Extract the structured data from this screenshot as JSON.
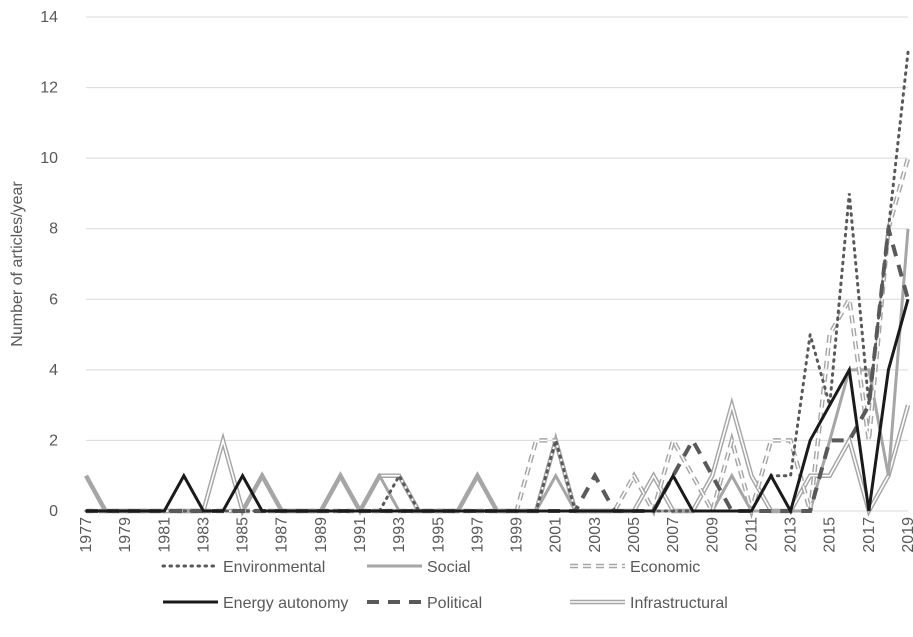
{
  "chart_data": {
    "type": "line",
    "title": "",
    "xlabel": "",
    "ylabel": "Number of articles/year",
    "ylim": [
      0,
      14
    ],
    "yticks": [
      0,
      2,
      4,
      6,
      8,
      10,
      12,
      14
    ],
    "grid": "horizontal",
    "legend_position": "bottom",
    "x": [
      1977,
      1978,
      1979,
      1980,
      1981,
      1982,
      1983,
      1984,
      1985,
      1986,
      1987,
      1988,
      1989,
      1990,
      1991,
      1992,
      1993,
      1994,
      1995,
      1996,
      1997,
      1998,
      1999,
      2000,
      2001,
      2002,
      2003,
      2004,
      2005,
      2006,
      2007,
      2008,
      2009,
      2010,
      2011,
      2012,
      2013,
      2014,
      2015,
      2016,
      2017,
      2018,
      2019
    ],
    "x_tick_labels": [
      "1977",
      "1979",
      "1981",
      "1983",
      "1985",
      "1987",
      "1989",
      "1991",
      "1993",
      "1995",
      "1997",
      "1999",
      "2001",
      "2003",
      "2005",
      "2007",
      "2009",
      "2011",
      "2013",
      "2015",
      "2017",
      "2019"
    ],
    "series": [
      {
        "name": "Environmental",
        "style": "dotted",
        "color": "#595959",
        "values": [
          0,
          0,
          0,
          0,
          0,
          0,
          0,
          0,
          0,
          0,
          0,
          0,
          0,
          0,
          0,
          0,
          1,
          0,
          0,
          0,
          0,
          0,
          0,
          0,
          2,
          0,
          0,
          0,
          0,
          0,
          0,
          0,
          0,
          0,
          0,
          1,
          1,
          5,
          3,
          9,
          3,
          8,
          13
        ]
      },
      {
        "name": "Social",
        "style": "solid-thick",
        "color": "#a6a6a6",
        "values": [
          1,
          0,
          0,
          0,
          0,
          0,
          0,
          0,
          0,
          1,
          0,
          0,
          0,
          1,
          0,
          1,
          0,
          0,
          0,
          0,
          1,
          0,
          0,
          0,
          1,
          0,
          0,
          0,
          0,
          0,
          0,
          0,
          0,
          1,
          0,
          0,
          0,
          0,
          2,
          4,
          4,
          1,
          8
        ]
      },
      {
        "name": "Economic",
        "style": "dashed-double",
        "color": "#a6a6a6",
        "values": [
          0,
          0,
          0,
          0,
          0,
          0,
          0,
          0,
          0,
          0,
          0,
          0,
          0,
          0,
          0,
          0,
          0,
          0,
          0,
          0,
          0,
          0,
          0,
          2,
          2,
          0,
          0,
          0,
          1,
          0,
          2,
          1,
          0,
          2,
          0,
          2,
          2,
          0,
          5,
          6,
          2,
          8,
          10
        ]
      },
      {
        "name": "Energy autonomy",
        "style": "solid-thick",
        "color": "#1a1a1a",
        "values": [
          0,
          0,
          0,
          0,
          0,
          1,
          0,
          0,
          1,
          0,
          0,
          0,
          0,
          0,
          0,
          0,
          0,
          0,
          0,
          0,
          0,
          0,
          0,
          0,
          0,
          0,
          0,
          0,
          0,
          0,
          1,
          0,
          0,
          0,
          0,
          1,
          0,
          2,
          3,
          4,
          0,
          4,
          6
        ]
      },
      {
        "name": "Political",
        "style": "dashed-thick",
        "color": "#595959",
        "values": [
          0,
          0,
          0,
          0,
          0,
          0,
          0,
          0,
          0,
          0,
          0,
          0,
          0,
          0,
          0,
          0,
          0,
          0,
          0,
          0,
          0,
          0,
          0,
          0,
          0,
          0,
          1,
          0,
          0,
          0,
          1,
          2,
          1,
          0,
          0,
          0,
          0,
          0,
          2,
          2,
          3,
          8,
          6
        ]
      },
      {
        "name": "Infrastructural",
        "style": "double",
        "color": "#a6a6a6",
        "values": [
          1,
          0,
          0,
          0,
          0,
          0,
          0,
          2,
          0,
          1,
          0,
          0,
          0,
          1,
          0,
          1,
          1,
          0,
          0,
          0,
          1,
          0,
          0,
          0,
          2,
          0,
          0,
          0,
          0,
          1,
          0,
          0,
          1,
          3,
          1,
          0,
          0,
          1,
          1,
          2,
          0,
          1,
          3
        ]
      }
    ]
  }
}
